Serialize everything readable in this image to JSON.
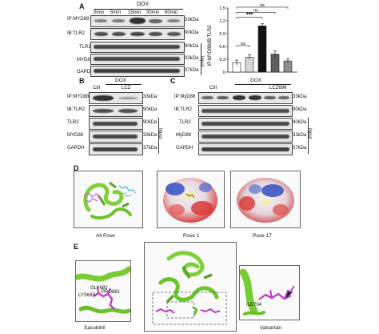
{
  "panelA": {
    "letter": "A",
    "treatment": "DOX",
    "timepoints": [
      "0min",
      "5min",
      "15min",
      "30min",
      "60min"
    ],
    "rows": [
      "IP:MYD88",
      "IB:TLR2",
      "TLR2",
      "MYD88",
      "GAPDH"
    ],
    "sizes": [
      "33kDa",
      "90kDa",
      "90kDa",
      "33kDa",
      "37kDa"
    ],
    "input_label": "Input",
    "chart_data": {
      "type": "bar",
      "categories": [
        "0min",
        "5min",
        "15min",
        "30min",
        "60min"
      ],
      "values": [
        0.22,
        0.35,
        1.08,
        0.42,
        0.26
      ],
      "errors": [
        0.06,
        0.06,
        0.05,
        0.08,
        0.05
      ],
      "ylabel": "IP:MYD88/IB:TLR2",
      "ylim": [
        0,
        1.5
      ],
      "yticks": [
        "0",
        "0.3",
        "0.6",
        "0.9",
        "1.2",
        "1.5"
      ],
      "bar_colors": [
        "#ffffff",
        "#d6d6d6",
        "#111111",
        "#5e5e5e",
        "#8f8f8f"
      ],
      "significance": [
        "ns",
        "***",
        "ns",
        "ns"
      ]
    }
  },
  "panelB": {
    "letter": "B",
    "treatment": "DOX",
    "lanes": [
      "Ctrl",
      "LCZ"
    ],
    "rows": [
      "IP:MYD88",
      "IB:TLR2",
      "TLR2",
      "MYD88",
      "GAPDH"
    ],
    "sizes": [
      "33kDa",
      "90kDa",
      "90kDa",
      "33kDa",
      "37kDa"
    ],
    "input_label": "Input"
  },
  "panelC": {
    "letter": "C",
    "treatment": "DOX",
    "lanes": [
      "Ctrl",
      "LCZ696"
    ],
    "rows": [
      "IP:MyD88",
      "IB:TLR2",
      "TLR2",
      "MyD88",
      "GAPDH"
    ],
    "sizes": [
      "33kDa",
      "90kDa",
      "90kDa",
      "33kDa",
      "37kDa"
    ],
    "input_label": "Input"
  },
  "panelD": {
    "letter": "D",
    "poses": [
      "All Pose",
      "Pose 1",
      "Pose 17"
    ]
  },
  "panelE": {
    "letter": "E",
    "residues_left": [
      "GLY682",
      "LYS683",
      "PRO681"
    ],
    "residues_right": [
      "ILE704"
    ],
    "drugs": [
      "Sacubitril",
      "Valsartan"
    ]
  }
}
